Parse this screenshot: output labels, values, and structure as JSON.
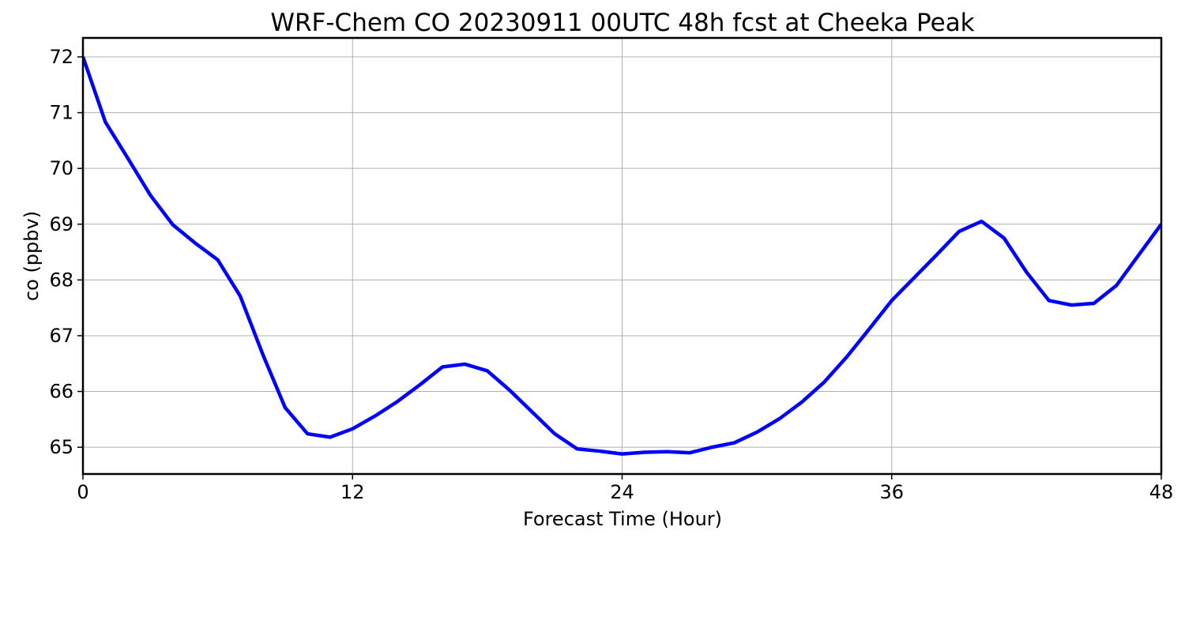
{
  "chart_data": {
    "type": "line",
    "title": "WRF-Chem CO  20230911 00UTC 48h fcst at Cheeka Peak",
    "xlabel": "Forecast Time (Hour)",
    "ylabel": "co  (ppbv)",
    "xlim": [
      0,
      48
    ],
    "ylim": [
      64.52,
      72.34
    ],
    "xticks": [
      0,
      12,
      24,
      36,
      48
    ],
    "yticks": [
      65,
      66,
      67,
      68,
      69,
      70,
      71,
      72
    ],
    "grid": true,
    "legend": "none",
    "series": [
      {
        "color": "#0000ff",
        "x": [
          0,
          1,
          2,
          3,
          4,
          5,
          6,
          7,
          8,
          9,
          10,
          11,
          12,
          13,
          14,
          15,
          16,
          17,
          18,
          19,
          20,
          21,
          22,
          23,
          24,
          25,
          26,
          27,
          28,
          29,
          30,
          31,
          32,
          33,
          34,
          35,
          36,
          37,
          38,
          39,
          40,
          41,
          42,
          43,
          44,
          45,
          46,
          47,
          48
        ],
        "y": [
          72.0,
          70.83,
          70.18,
          69.52,
          68.99,
          68.66,
          68.36,
          67.71,
          66.67,
          65.71,
          65.24,
          65.18,
          65.33,
          65.56,
          65.82,
          66.12,
          66.44,
          66.49,
          66.37,
          66.02,
          65.63,
          65.24,
          64.97,
          64.93,
          64.88,
          64.91,
          64.92,
          64.9,
          65.0,
          65.08,
          65.27,
          65.51,
          65.81,
          66.17,
          66.62,
          67.12,
          67.63,
          68.04,
          68.45,
          68.87,
          69.05,
          68.75,
          68.14,
          67.63,
          67.55,
          67.58,
          67.9,
          68.45,
          69.0
        ]
      }
    ]
  }
}
